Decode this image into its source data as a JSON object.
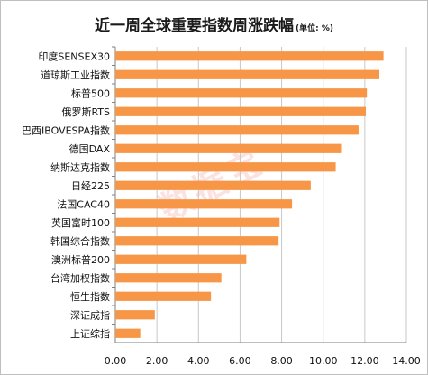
{
  "title": "近一周全球重要指数周涨跌幅",
  "unit_label": "(单位: %)",
  "watermark": "数据宝",
  "colors": {
    "bar": "#F79646",
    "grid": "#c8c8c8",
    "axis": "#7f7f7f"
  },
  "chart_data": {
    "type": "bar",
    "orientation": "horizontal",
    "title": "近一周全球重要指数周涨跌幅",
    "unit": "%",
    "categories": [
      "印度SENSEX30",
      "道琼斯工业指数",
      "标普500",
      "俄罗斯RTS",
      "巴西IBOVESPA指数",
      "德国DAX",
      "纳斯达克指数",
      "日经225",
      "法国CAC40",
      "英国富时100",
      "韩国综合指数",
      "澳洲标普200",
      "台湾加权指数",
      "恒生指数",
      "深证成指",
      "上证综指"
    ],
    "values": [
      12.9,
      12.7,
      12.1,
      12.05,
      11.7,
      10.9,
      10.6,
      9.4,
      8.5,
      7.9,
      7.85,
      6.3,
      5.1,
      4.6,
      1.9,
      1.2
    ],
    "xlim": [
      0,
      14
    ],
    "xticks": [
      "0.00",
      "2.00",
      "4.00",
      "6.00",
      "8.00",
      "10.00",
      "12.00",
      "14.00"
    ],
    "grid": "vertical"
  }
}
